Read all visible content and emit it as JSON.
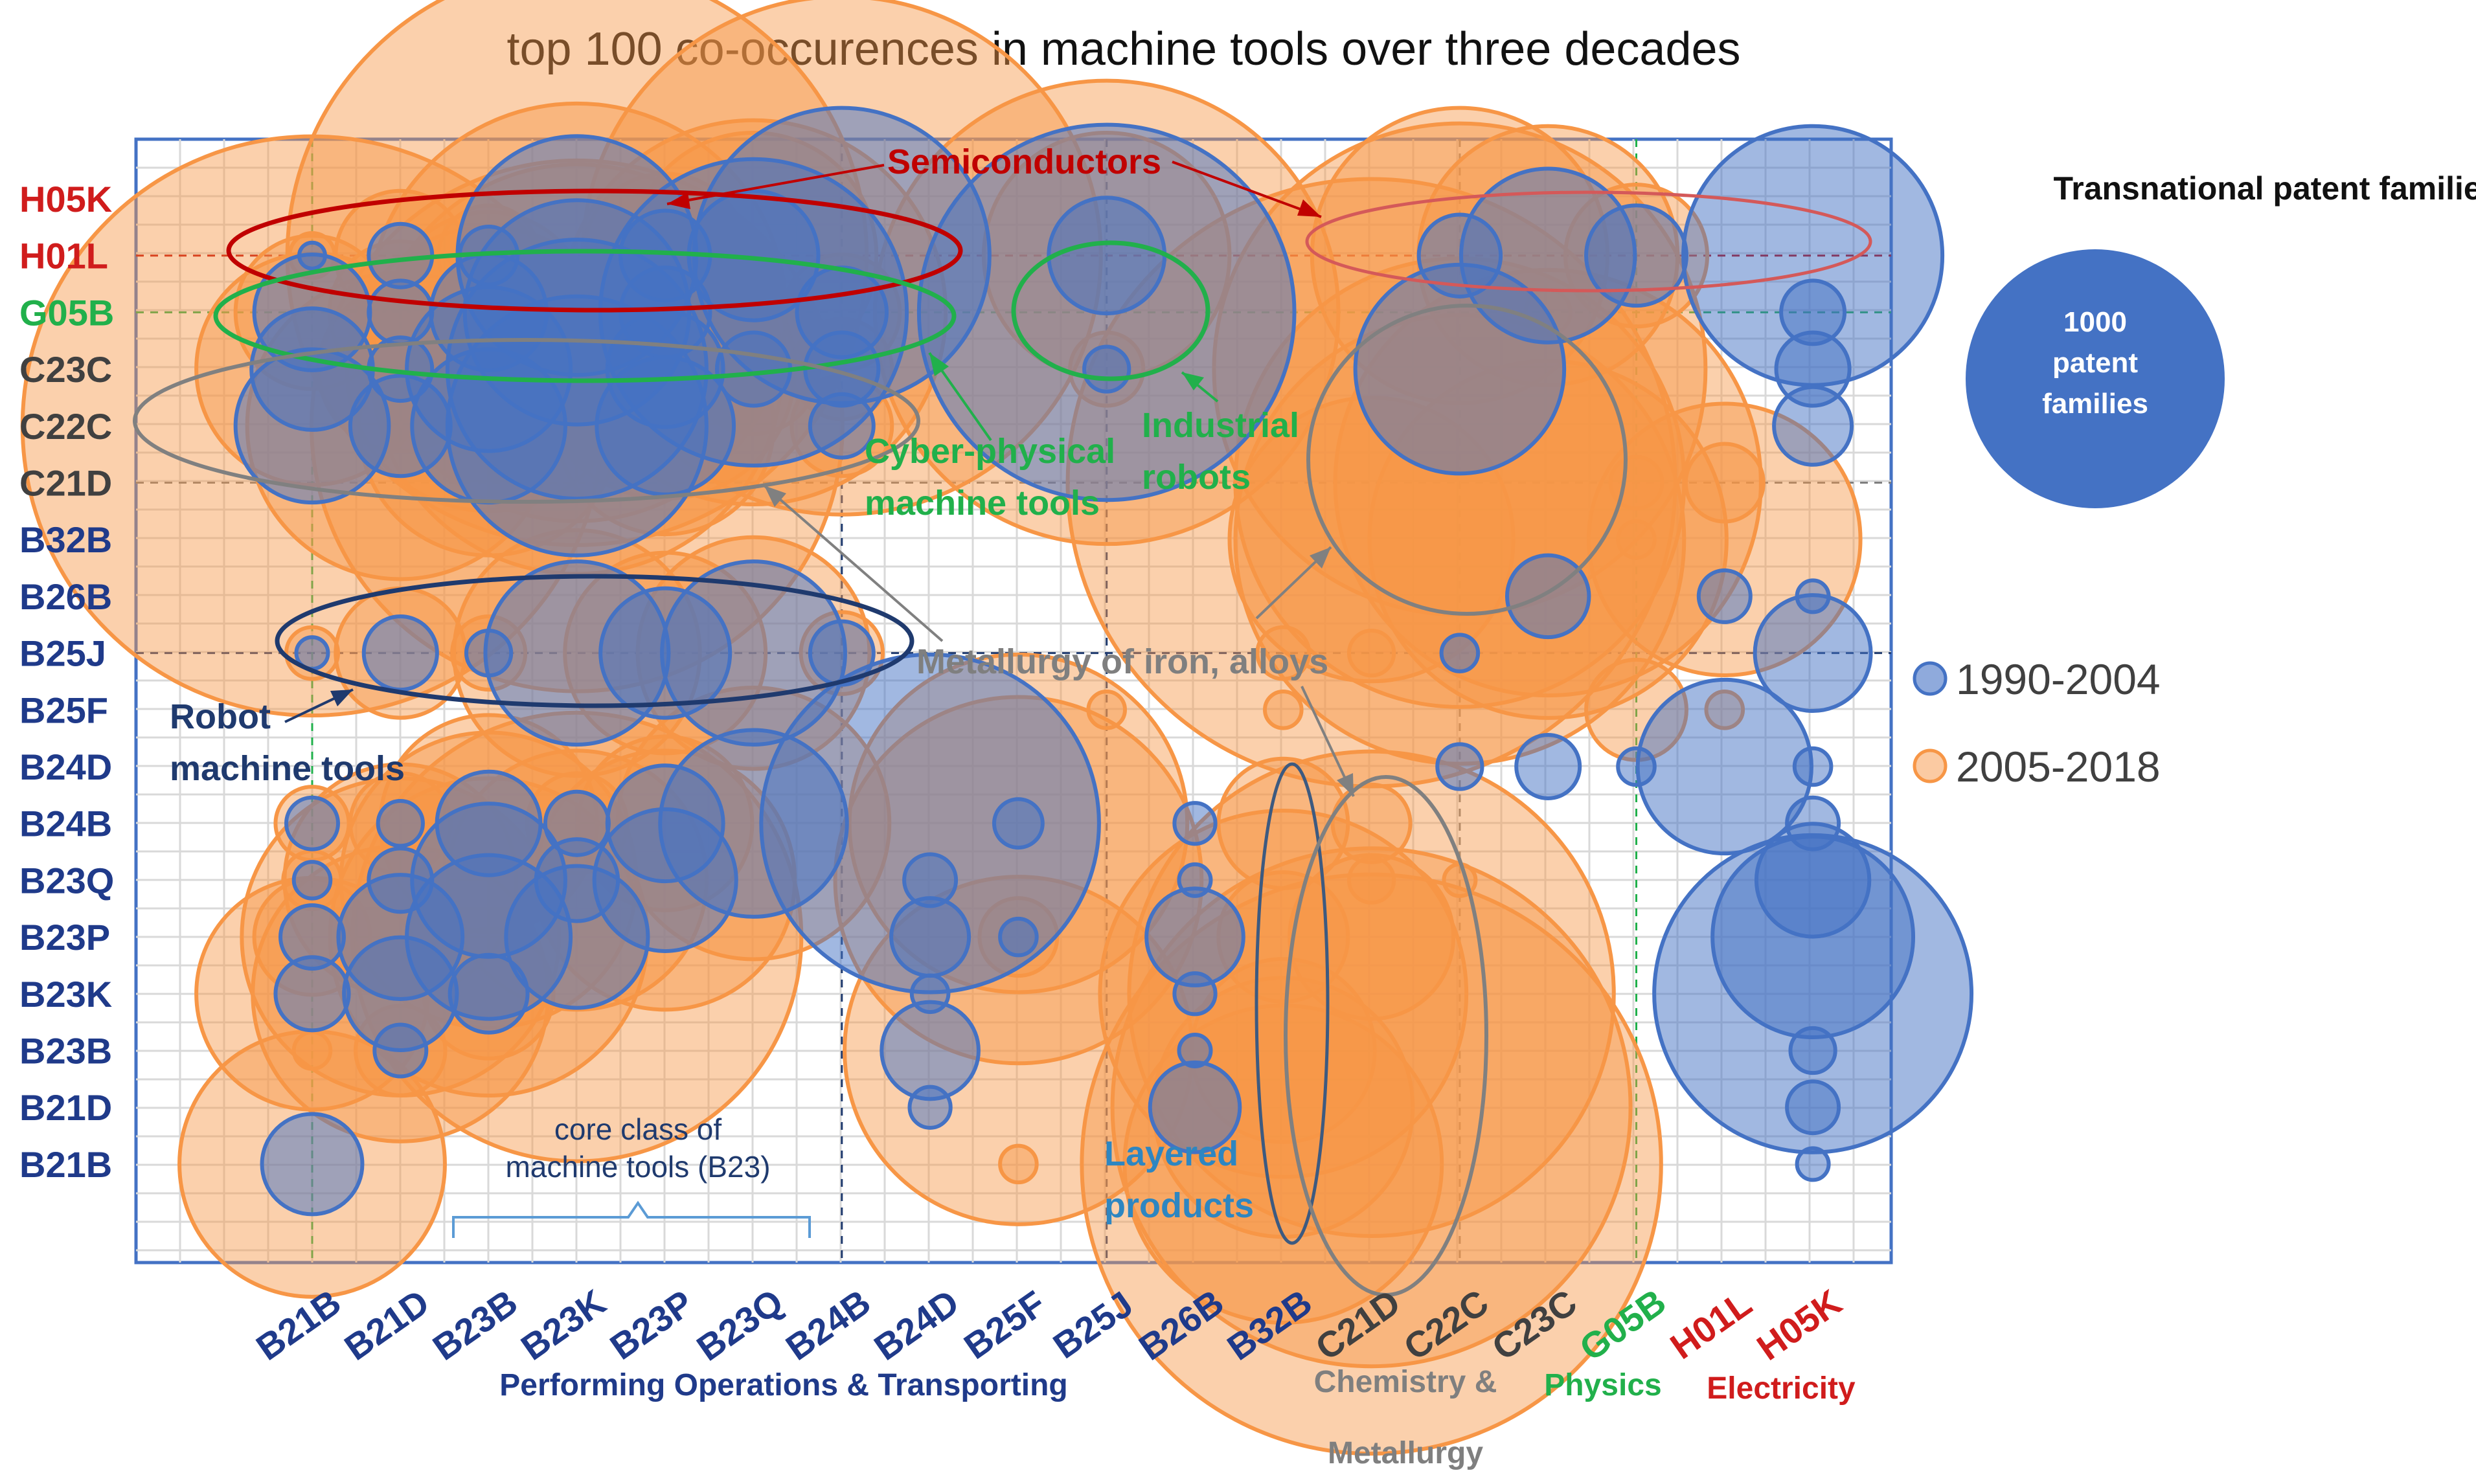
{
  "chart_data": {
    "type": "bubble-matrix",
    "title": "top 100 co-occurences in machine tools over three decades",
    "xlabel_groups": [
      {
        "label": "Performing Operations & Transporting",
        "color": "#1f3a8a"
      },
      {
        "label": "Chemistry &",
        "color": "#7f7f7f"
      },
      {
        "label": "Metallurgy",
        "color": "#7f7f7f"
      },
      {
        "label": "Physics",
        "color": "#21b04b"
      },
      {
        "label": "Electricity",
        "color": "#d01c1c"
      }
    ],
    "x_categories": [
      {
        "label": "B21B",
        "color": "#1f3a8a"
      },
      {
        "label": "B21D",
        "color": "#1f3a8a"
      },
      {
        "label": "B23B",
        "color": "#1f3a8a"
      },
      {
        "label": "B23K",
        "color": "#1f3a8a"
      },
      {
        "label": "B23P",
        "color": "#1f3a8a"
      },
      {
        "label": "B23Q",
        "color": "#1f3a8a"
      },
      {
        "label": "B24B",
        "color": "#1f3a8a"
      },
      {
        "label": "B24D",
        "color": "#1f3a8a"
      },
      {
        "label": "B25F",
        "color": "#1f3a8a"
      },
      {
        "label": "B25J",
        "color": "#1f3a8a"
      },
      {
        "label": "B26B",
        "color": "#1f3a8a"
      },
      {
        "label": "B32B",
        "color": "#1f3a8a"
      },
      {
        "label": "C21D",
        "color": "#404040"
      },
      {
        "label": "C22C",
        "color": "#404040"
      },
      {
        "label": "C23C",
        "color": "#404040"
      },
      {
        "label": "G05B",
        "color": "#21b04b"
      },
      {
        "label": "H01L",
        "color": "#d01c1c"
      },
      {
        "label": "H05K",
        "color": "#d01c1c"
      }
    ],
    "y_categories": [
      {
        "label": "H05K",
        "color": "#d01c1c"
      },
      {
        "label": "H01L",
        "color": "#d01c1c"
      },
      {
        "label": "G05B",
        "color": "#21b04b"
      },
      {
        "label": "C23C",
        "color": "#404040"
      },
      {
        "label": "C22C",
        "color": "#404040"
      },
      {
        "label": "C21D",
        "color": "#404040"
      },
      {
        "label": "B32B",
        "color": "#1f3a8a"
      },
      {
        "label": "B26B",
        "color": "#1f3a8a"
      },
      {
        "label": "B25J",
        "color": "#1f3a8a"
      },
      {
        "label": "B25F",
        "color": "#1f3a8a"
      },
      {
        "label": "B24D",
        "color": "#1f3a8a"
      },
      {
        "label": "B24B",
        "color": "#1f3a8a"
      },
      {
        "label": "B23Q",
        "color": "#1f3a8a"
      },
      {
        "label": "B23P",
        "color": "#1f3a8a"
      },
      {
        "label": "B23K",
        "color": "#1f3a8a"
      },
      {
        "label": "B23B",
        "color": "#1f3a8a"
      },
      {
        "label": "B21D",
        "color": "#1f3a8a"
      },
      {
        "label": "B21B",
        "color": "#1f3a8a"
      }
    ],
    "series": [
      {
        "name": "1990-2004",
        "fill": "#4472c4",
        "stroke": "#4472c4"
      },
      {
        "name": "2005-2018",
        "fill": "#f79646",
        "stroke": "#f79646"
      }
    ],
    "size_legend": {
      "title": "Transnational  patent families",
      "value": 1000,
      "line1": "1000",
      "line2": "patent",
      "line3": "families"
    },
    "bubbles_1990_2004": [
      {
        "x": "B21B",
        "y": "H01L",
        "v": 10
      },
      {
        "x": "B21B",
        "y": "G05B",
        "v": 200
      },
      {
        "x": "B21B",
        "y": "C23C",
        "v": 220
      },
      {
        "x": "B21B",
        "y": "C22C",
        "v": 350
      },
      {
        "x": "B21B",
        "y": "B25J",
        "v": 15
      },
      {
        "x": "B21B",
        "y": "B24B",
        "v": 40
      },
      {
        "x": "B21B",
        "y": "B23Q",
        "v": 20
      },
      {
        "x": "B21B",
        "y": "B23P",
        "v": 60
      },
      {
        "x": "B21B",
        "y": "B23K",
        "v": 80
      },
      {
        "x": "B21B",
        "y": "B21B",
        "v": 150
      },
      {
        "x": "B21D",
        "y": "H01L",
        "v": 60
      },
      {
        "x": "B21D",
        "y": "G05B",
        "v": 60
      },
      {
        "x": "B21D",
        "y": "C23C",
        "v": 60
      },
      {
        "x": "B21D",
        "y": "C22C",
        "v": 150
      },
      {
        "x": "B21D",
        "y": "B25J",
        "v": 80
      },
      {
        "x": "B21D",
        "y": "B24B",
        "v": 30
      },
      {
        "x": "B21D",
        "y": "B23Q",
        "v": 60
      },
      {
        "x": "B21D",
        "y": "B23P",
        "v": 230
      },
      {
        "x": "B21D",
        "y": "B23K",
        "v": 190
      },
      {
        "x": "B21D",
        "y": "B23B",
        "v": 40
      },
      {
        "x": "B23B",
        "y": "H01L",
        "v": 50
      },
      {
        "x": "B23B",
        "y": "G05B",
        "v": 200
      },
      {
        "x": "B23B",
        "y": "C23C",
        "v": 400
      },
      {
        "x": "B23B",
        "y": "C22C",
        "v": 350
      },
      {
        "x": "B23B",
        "y": "B25J",
        "v": 30
      },
      {
        "x": "B23B",
        "y": "B24B",
        "v": 160
      },
      {
        "x": "B23B",
        "y": "B23Q",
        "v": 350
      },
      {
        "x": "B23B",
        "y": "B23P",
        "v": 400
      },
      {
        "x": "B23B",
        "y": "B23K",
        "v": 90
      },
      {
        "x": "B23K",
        "y": "H01L",
        "v": 850
      },
      {
        "x": "B23K",
        "y": "G05B",
        "v": 750
      },
      {
        "x": "B23K",
        "y": "C23C",
        "v": 1000
      },
      {
        "x": "B23K",
        "y": "C22C",
        "v": 1000
      },
      {
        "x": "B23K",
        "y": "B25J",
        "v": 500
      },
      {
        "x": "B23K",
        "y": "B24B",
        "v": 60
      },
      {
        "x": "B23K",
        "y": "B23Q",
        "v": 100
      },
      {
        "x": "B23K",
        "y": "B23P",
        "v": 300
      },
      {
        "x": "B23P",
        "y": "H01L",
        "v": 120
      },
      {
        "x": "B23P",
        "y": "G05B",
        "v": 120
      },
      {
        "x": "B23P",
        "y": "C23C",
        "v": 200
      },
      {
        "x": "B23P",
        "y": "C22C",
        "v": 280
      },
      {
        "x": "B23P",
        "y": "B25J",
        "v": 250
      },
      {
        "x": "B23P",
        "y": "B24B",
        "v": 200
      },
      {
        "x": "B23P",
        "y": "B23Q",
        "v": 300
      },
      {
        "x": "B23Q",
        "y": "H01L",
        "v": 250
      },
      {
        "x": "B23Q",
        "y": "G05B",
        "v": 1400
      },
      {
        "x": "B23Q",
        "y": "C23C",
        "v": 80
      },
      {
        "x": "B23Q",
        "y": "B25J",
        "v": 500
      },
      {
        "x": "B23Q",
        "y": "B24B",
        "v": 520
      },
      {
        "x": "B24B",
        "y": "H01L",
        "v": 1300
      },
      {
        "x": "B24B",
        "y": "G05B",
        "v": 120
      },
      {
        "x": "B24B",
        "y": "C23C",
        "v": 80
      },
      {
        "x": "B24B",
        "y": "C22C",
        "v": 60
      },
      {
        "x": "B24B",
        "y": "B25J",
        "v": 60
      },
      {
        "x": "B24D",
        "y": "B24B",
        "v": 1700
      },
      {
        "x": "B24D",
        "y": "B23Q",
        "v": 40
      },
      {
        "x": "B24D",
        "y": "B23P",
        "v": 90
      },
      {
        "x": "B24D",
        "y": "B23K",
        "v": 20
      },
      {
        "x": "B24D",
        "y": "B23B",
        "v": 140
      },
      {
        "x": "B24D",
        "y": "B21D",
        "v": 25
      },
      {
        "x": "B25F",
        "y": "B24B",
        "v": 35
      },
      {
        "x": "B25F",
        "y": "B23P",
        "v": 20
      },
      {
        "x": "B25J",
        "y": "H01L",
        "v": 200
      },
      {
        "x": "B25J",
        "y": "G05B",
        "v": 2100
      },
      {
        "x": "B25J",
        "y": "C23C",
        "v": 30
      },
      {
        "x": "B26B",
        "y": "B24B",
        "v": 25
      },
      {
        "x": "B26B",
        "y": "B23Q",
        "v": 15
      },
      {
        "x": "B26B",
        "y": "B23P",
        "v": 140
      },
      {
        "x": "B26B",
        "y": "B23K",
        "v": 25
      },
      {
        "x": "B26B",
        "y": "B23B",
        "v": 15
      },
      {
        "x": "B26B",
        "y": "B21D",
        "v": 120
      },
      {
        "x": "C22C",
        "y": "H01L",
        "v": 100
      },
      {
        "x": "C22C",
        "y": "C23C",
        "v": 650
      },
      {
        "x": "C22C",
        "y": "B25J",
        "v": 20
      },
      {
        "x": "C22C",
        "y": "B24D",
        "v": 30
      },
      {
        "x": "C23C",
        "y": "H01L",
        "v": 450
      },
      {
        "x": "C23C",
        "y": "B26B",
        "v": 100
      },
      {
        "x": "C23C",
        "y": "B24D",
        "v": 60
      },
      {
        "x": "G05B",
        "y": "H01L",
        "v": 150
      },
      {
        "x": "G05B",
        "y": "B24D",
        "v": 20
      },
      {
        "x": "H01L",
        "y": "B26B",
        "v": 40
      },
      {
        "x": "H01L",
        "y": "B24D",
        "v": 450
      },
      {
        "x": "H05K",
        "y": "H01L",
        "v": 1000
      },
      {
        "x": "H05K",
        "y": "G05B",
        "v": 60
      },
      {
        "x": "H05K",
        "y": "C23C",
        "v": 80
      },
      {
        "x": "H05K",
        "y": "C22C",
        "v": 90
      },
      {
        "x": "H05K",
        "y": "B26B",
        "v": 15
      },
      {
        "x": "H05K",
        "y": "B25J",
        "v": 200
      },
      {
        "x": "H05K",
        "y": "B24D",
        "v": 20
      },
      {
        "x": "H05K",
        "y": "B24B",
        "v": 40
      },
      {
        "x": "H05K",
        "y": "B23Q",
        "v": 190
      },
      {
        "x": "H05K",
        "y": "B23P",
        "v": 600
      },
      {
        "x": "H05K",
        "y": "B23K",
        "v": 1500
      },
      {
        "x": "H05K",
        "y": "B23B",
        "v": 30
      },
      {
        "x": "H05K",
        "y": "B21D",
        "v": 40
      },
      {
        "x": "H05K",
        "y": "B21B",
        "v": 15
      }
    ],
    "bubbles_2005_2018": [
      {
        "x": "B21B",
        "y": "H01L",
        "v": 30
      },
      {
        "x": "B21B",
        "y": "G05B",
        "v": 350
      },
      {
        "x": "B21B",
        "y": "C23C",
        "v": 800
      },
      {
        "x": "B21B",
        "y": "C22C",
        "v": 5000
      },
      {
        "x": "B21B",
        "y": "B25J",
        "v": 40
      },
      {
        "x": "B21B",
        "y": "B24B",
        "v": 80
      },
      {
        "x": "B21B",
        "y": "B23Q",
        "v": 50
      },
      {
        "x": "B21B",
        "y": "B23P",
        "v": 200
      },
      {
        "x": "B21B",
        "y": "B23K",
        "v": 800
      },
      {
        "x": "B21B",
        "y": "B23B",
        "v": 20
      },
      {
        "x": "B21B",
        "y": "B21B",
        "v": 1050
      },
      {
        "x": "B21D",
        "y": "H01L",
        "v": 250
      },
      {
        "x": "B21D",
        "y": "G05B",
        "v": 300
      },
      {
        "x": "B21D",
        "y": "C23C",
        "v": 400
      },
      {
        "x": "B21D",
        "y": "C22C",
        "v": 1400
      },
      {
        "x": "B21D",
        "y": "B25J",
        "v": 250
      },
      {
        "x": "B21D",
        "y": "B24B",
        "v": 150
      },
      {
        "x": "B21D",
        "y": "B23Q",
        "v": 800
      },
      {
        "x": "B21D",
        "y": "B23P",
        "v": 1500
      },
      {
        "x": "B21D",
        "y": "B23K",
        "v": 1300
      },
      {
        "x": "B21D",
        "y": "B23B",
        "v": 120
      },
      {
        "x": "B23B",
        "y": "H01L",
        "v": 150
      },
      {
        "x": "B23B",
        "y": "G05B",
        "v": 600
      },
      {
        "x": "B23B",
        "y": "C23C",
        "v": 1200
      },
      {
        "x": "B23B",
        "y": "C22C",
        "v": 1000
      },
      {
        "x": "B23B",
        "y": "B25J",
        "v": 80
      },
      {
        "x": "B23B",
        "y": "B24B",
        "v": 700
      },
      {
        "x": "B23B",
        "y": "B23Q",
        "v": 1300
      },
      {
        "x": "B23B",
        "y": "B23P",
        "v": 1500
      },
      {
        "x": "B23B",
        "y": "B23K",
        "v": 250
      },
      {
        "x": "B23K",
        "y": "H01L",
        "v": 5000
      },
      {
        "x": "B23K",
        "y": "G05B",
        "v": 2600
      },
      {
        "x": "B23K",
        "y": "C23C",
        "v": 2500
      },
      {
        "x": "B23K",
        "y": "C22C",
        "v": 4200
      },
      {
        "x": "B23K",
        "y": "B25J",
        "v": 900
      },
      {
        "x": "B23K",
        "y": "B24B",
        "v": 150
      },
      {
        "x": "B23K",
        "y": "B23Q",
        "v": 1000
      },
      {
        "x": "B23K",
        "y": "B23P",
        "v": 3000
      },
      {
        "x": "B23P",
        "y": "H01L",
        "v": 400
      },
      {
        "x": "B23P",
        "y": "G05B",
        "v": 400
      },
      {
        "x": "B23P",
        "y": "C23C",
        "v": 1000
      },
      {
        "x": "B23P",
        "y": "C22C",
        "v": 700
      },
      {
        "x": "B23P",
        "y": "B25J",
        "v": 600
      },
      {
        "x": "B23P",
        "y": "B24B",
        "v": 450
      },
      {
        "x": "B23P",
        "y": "B23Q",
        "v": 1000
      },
      {
        "x": "B23Q",
        "y": "H01L",
        "v": 900
      },
      {
        "x": "B23Q",
        "y": "G05B",
        "v": 2200
      },
      {
        "x": "B23Q",
        "y": "C23C",
        "v": 250
      },
      {
        "x": "B23Q",
        "y": "B25J",
        "v": 800
      },
      {
        "x": "B23Q",
        "y": "B24B",
        "v": 1100
      },
      {
        "x": "B24B",
        "y": "H01L",
        "v": 4000
      },
      {
        "x": "B24B",
        "y": "G05B",
        "v": 200
      },
      {
        "x": "B24B",
        "y": "C23C",
        "v": 150
      },
      {
        "x": "B24B",
        "y": "C22C",
        "v": 150
      },
      {
        "x": "B24B",
        "y": "B25J",
        "v": 100
      },
      {
        "x": "B25F",
        "y": "B24B",
        "v": 1700
      },
      {
        "x": "B25F",
        "y": "B23Q",
        "v": 2000
      },
      {
        "x": "B25F",
        "y": "B23P",
        "v": 90
      },
      {
        "x": "B25F",
        "y": "B23B",
        "v": 1800
      },
      {
        "x": "B25F",
        "y": "B21B",
        "v": 20
      },
      {
        "x": "B25J",
        "y": "H01L",
        "v": 900
      },
      {
        "x": "B25J",
        "y": "G05B",
        "v": 3200
      },
      {
        "x": "B25J",
        "y": "C23C",
        "v": 80
      },
      {
        "x": "B25J",
        "y": "B25F",
        "v": 20
      },
      {
        "x": "B32B",
        "y": "B24B",
        "v": 250
      },
      {
        "x": "B32B",
        "y": "B23P",
        "v": 250
      },
      {
        "x": "B32B",
        "y": "B23K",
        "v": 2000
      },
      {
        "x": "B32B",
        "y": "B23B",
        "v": 500
      },
      {
        "x": "B32B",
        "y": "B21D",
        "v": 1000
      },
      {
        "x": "B32B",
        "y": "B21B",
        "v": 1500
      },
      {
        "x": "B32B",
        "y": "B25J",
        "v": 40
      },
      {
        "x": "B32B",
        "y": "B25F",
        "v": 20
      },
      {
        "x": "C21D",
        "y": "C21D",
        "v": 5500
      },
      {
        "x": "C21D",
        "y": "B32B",
        "v": 1200
      },
      {
        "x": "C21D",
        "y": "B25J",
        "v": 30
      },
      {
        "x": "C21D",
        "y": "B24B",
        "v": 90
      },
      {
        "x": "C21D",
        "y": "B23Q",
        "v": 30
      },
      {
        "x": "C21D",
        "y": "B23P",
        "v": 400
      },
      {
        "x": "C21D",
        "y": "B23K",
        "v": 3500
      },
      {
        "x": "C21D",
        "y": "B21D",
        "v": 4000
      },
      {
        "x": "C21D",
        "y": "B21B",
        "v": 5000
      },
      {
        "x": "C22C",
        "y": "H01L",
        "v": 1300
      },
      {
        "x": "C22C",
        "y": "C23C",
        "v": 3600
      },
      {
        "x": "C22C",
        "y": "C21D",
        "v": 3000
      },
      {
        "x": "C22C",
        "y": "B32B",
        "v": 3000
      },
      {
        "x": "C22C",
        "y": "B23Q",
        "v": 15
      },
      {
        "x": "C23C",
        "y": "H01L",
        "v": 1000
      },
      {
        "x": "C23C",
        "y": "G05B",
        "v": 30
      },
      {
        "x": "C23C",
        "y": "C21D",
        "v": 2700
      },
      {
        "x": "C23C",
        "y": "B32B",
        "v": 1900
      },
      {
        "x": "G05B",
        "y": "H01L",
        "v": 300
      },
      {
        "x": "G05B",
        "y": "C21D",
        "v": 40
      },
      {
        "x": "G05B",
        "y": "B32B",
        "v": 20
      },
      {
        "x": "G05B",
        "y": "B25F",
        "v": 150
      },
      {
        "x": "H01L",
        "y": "C21D",
        "v": 90
      },
      {
        "x": "H01L",
        "y": "B32B",
        "v": 1100
      },
      {
        "x": "H01L",
        "y": "B25F",
        "v": 20
      }
    ],
    "annotations": [
      {
        "text": "Semiconductors",
        "color": "#c00000"
      },
      {
        "text": "Cyber-physical",
        "color": "#21b04b"
      },
      {
        "text": "machine tools",
        "color": "#21b04b"
      },
      {
        "text": "Industrial",
        "color": "#21b04b"
      },
      {
        "text": "robots",
        "color": "#21b04b"
      },
      {
        "text": "Metallurgy of iron, alloys",
        "color": "#7f7f7f"
      },
      {
        "text": "Robot",
        "color": "#1f3a6e"
      },
      {
        "text": "machine tools",
        "color": "#1f3a6e"
      },
      {
        "text": "Layered",
        "color": "#2e86c1"
      },
      {
        "text": "products",
        "color": "#2e86c1"
      },
      {
        "text": "core class of",
        "color": "#1f3a6e"
      },
      {
        "text": "machine tools (B23)",
        "color": "#1f3a6e"
      }
    ]
  }
}
